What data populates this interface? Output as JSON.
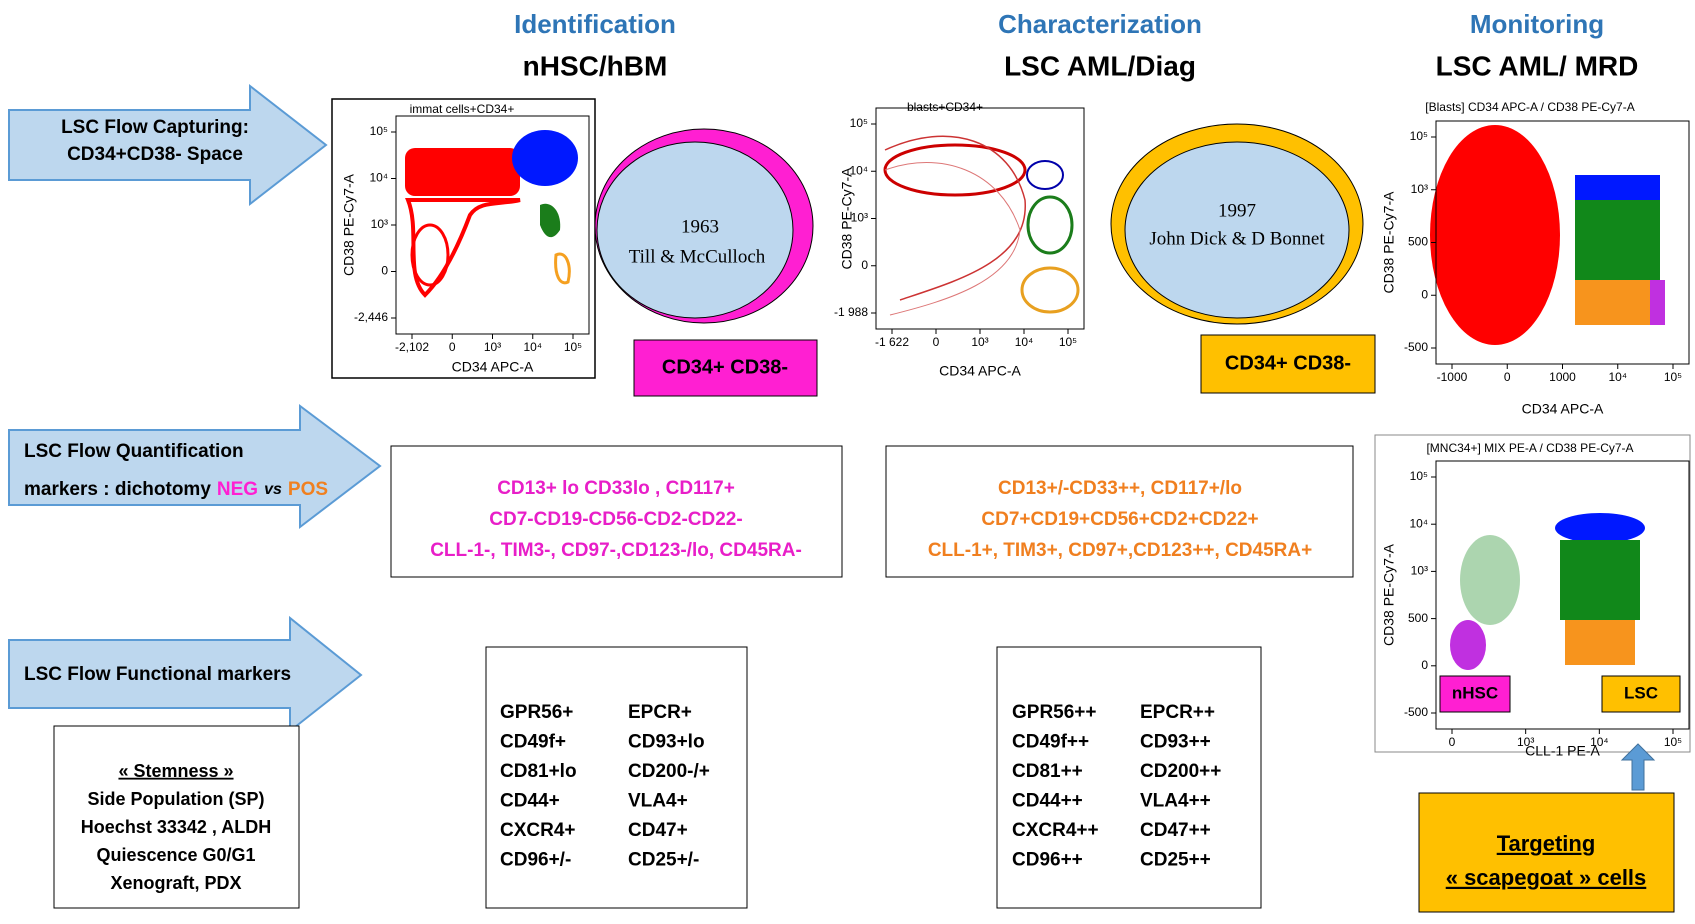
{
  "headings": [
    {
      "title": "Identification",
      "subtitle": "nHSC/hBM"
    },
    {
      "title": "Characterization",
      "subtitle": "LSC AML/Diag"
    },
    {
      "title": "Monitoring",
      "subtitle": "LSC AML/ MRD"
    }
  ],
  "arrows": [
    {
      "lines": [
        "LSC Flow Capturing:",
        "CD34+CD38- Space"
      ]
    },
    {
      "lines": [
        "LSC Flow  Quantification",
        "markers : dichotomy"
      ],
      "neg": "NEG",
      "vs": "vs",
      "pos": "POS"
    },
    {
      "lines": [
        "LSC Flow Functional markers"
      ]
    }
  ],
  "ellipses": [
    {
      "year": "1963",
      "names": "Till  & McCulloch"
    },
    {
      "year": "1997",
      "names": "John Dick & D Bonnet"
    }
  ],
  "phenotype_boxes": [
    "CD34+ CD38-",
    "CD34+ CD38-"
  ],
  "quantification": [
    {
      "lines": [
        "CD13+ lo CD33lo , CD117+",
        "CD7-CD19-CD56-CD2-CD22-",
        "CLL-1-, TIM3-, CD97-,CD123-/lo, CD45RA-"
      ]
    },
    {
      "lines": [
        "CD13+/-CD33++, CD117+/lo",
        "CD7+CD19+CD56+CD2+CD22+",
        "CLL-1+, TIM3+, CD97+,CD123++, CD45RA+"
      ]
    }
  ],
  "functional": [
    {
      "rows": [
        [
          "GPR56+",
          "EPCR+"
        ],
        [
          "CD49f+",
          "CD93+lo"
        ],
        [
          "CD81+lo",
          "CD200-/+"
        ],
        [
          "CD44+",
          "VLA4+"
        ],
        [
          "CXCR4+",
          "CD47+"
        ],
        [
          "CD96+/-",
          "CD25+/-"
        ]
      ]
    },
    {
      "rows": [
        [
          "GPR56++",
          "EPCR++"
        ],
        [
          "CD49f++",
          "CD93++"
        ],
        [
          "CD81++",
          "CD200++"
        ],
        [
          "CD44++",
          "VLA4++"
        ],
        [
          "CXCR4++",
          "CD47++"
        ],
        [
          "CD96++",
          "CD25++"
        ]
      ]
    }
  ],
  "stemness": [
    "« Stemness »",
    "Side Population (SP)",
    "Hoechst 33342 , ALDH",
    "Quiescence G0/G1",
    "Xenograft, PDX"
  ],
  "targeting": [
    "Targeting",
    "« scapegoat » cells"
  ],
  "plots": [
    {
      "title": "immat cells+CD34+",
      "xlabel": "CD34 APC-A",
      "ylabel": "CD38 PE-Cy7-A",
      "xticks": [
        "-2,102",
        "0",
        "10³",
        "10⁴",
        "10⁵"
      ],
      "yticks": [
        "-2,446",
        "0",
        "10³",
        "10⁴",
        "10⁵"
      ]
    },
    {
      "title": "blasts+CD34+",
      "xlabel": "CD34 APC-A",
      "ylabel": "CD38 PE-Cy7-A",
      "xticks": [
        "-1 622",
        "0",
        "10³",
        "10⁴",
        "10⁵"
      ],
      "yticks": [
        "-1 988",
        "0",
        "10³",
        "10⁴",
        "10⁵"
      ]
    },
    {
      "title": "[Blasts] CD34 APC-A / CD38 PE-Cy7-A",
      "xlabel": "CD34 APC-A",
      "ylabel": "CD38 PE-Cy7-A",
      "xticks": [
        "-1000",
        "0",
        "1000",
        "10⁴",
        "10⁵"
      ],
      "yticks": [
        "-500",
        "0",
        "500",
        "10³",
        "10⁵"
      ]
    },
    {
      "title": "[MNC34+] MIX PE-A / CD38 PE-Cy7-A",
      "xlabel": "CLL-1 PE-A",
      "ylabel": "CD38 PE-Cy7-A",
      "xticks": [
        "0",
        "10³",
        "10⁴",
        "10⁵"
      ],
      "yticks": [
        "-500",
        "0",
        "500",
        "10³",
        "10⁴",
        "10⁵"
      ],
      "gates": [
        "nHSC",
        "LSC"
      ]
    }
  ]
}
